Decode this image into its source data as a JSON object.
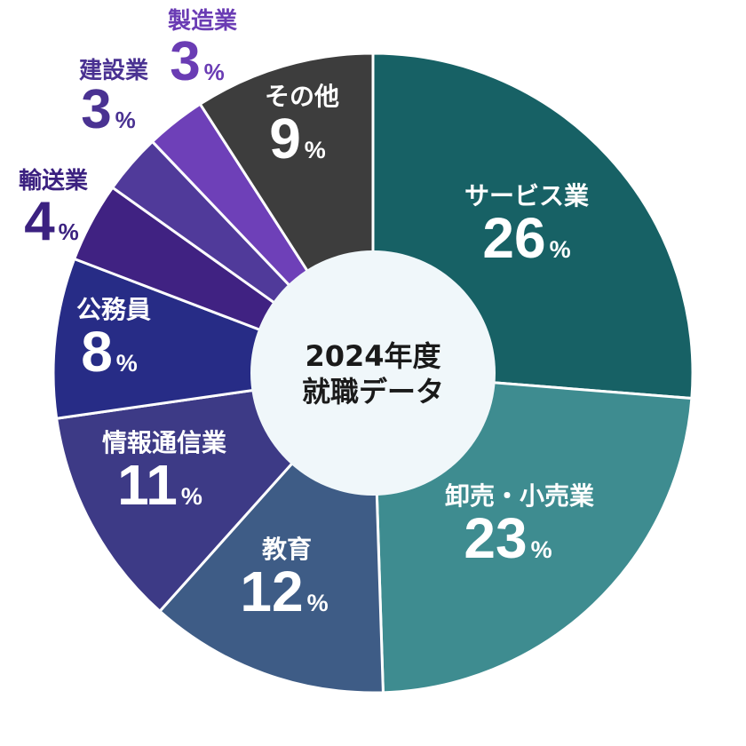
{
  "chart_data": {
    "type": "pie",
    "title": "",
    "center_label": [
      "2024年度",
      "就職データ"
    ],
    "unit": "%",
    "slices": [
      {
        "label": "サービス業",
        "value": 26,
        "color": "#176165",
        "text_color": "#ffffff"
      },
      {
        "label": "卸売・小売業",
        "value": 23,
        "color": "#3e8c90",
        "text_color": "#ffffff"
      },
      {
        "label": "教育",
        "value": 12,
        "color": "#3e5c86",
        "text_color": "#ffffff"
      },
      {
        "label": "情報通信業",
        "value": 11,
        "color": "#3d3a86",
        "text_color": "#ffffff"
      },
      {
        "label": "公務員",
        "value": 8,
        "color": "#272c86",
        "text_color": "#ffffff"
      },
      {
        "label": "輸送業",
        "value": 4,
        "color": "#402282",
        "text_color": "#3b2180"
      },
      {
        "label": "建設業",
        "value": 3,
        "color": "#503a9a",
        "text_color": "#4a3292"
      },
      {
        "label": "製造業",
        "value": 3,
        "color": "#6e40b8",
        "text_color": "#6a3cb4"
      },
      {
        "label": "その他",
        "value": 9,
        "color": "#3d3d3d",
        "text_color": "#ffffff"
      }
    ],
    "center_fill": "#f0f7fa"
  }
}
